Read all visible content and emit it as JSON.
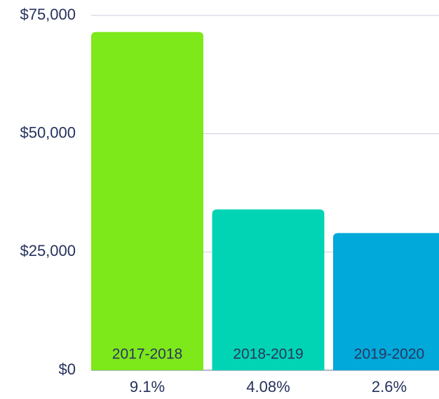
{
  "chart_data": {
    "type": "bar",
    "categories": [
      "2017-2018",
      "2018-2019",
      "2019-2020"
    ],
    "growth_labels": [
      "9.1%",
      "4.08%",
      "2.6%"
    ],
    "values": [
      71500,
      34000,
      29000
    ],
    "colors": [
      "#7de81a",
      "#00d4b4",
      "#00a9d9"
    ],
    "ylim": [
      0,
      75000
    ],
    "yticks": [
      {
        "value": 0,
        "label": "$0"
      },
      {
        "value": 25000,
        "label": "$25,000"
      },
      {
        "value": 50000,
        "label": "$50,000"
      },
      {
        "value": 75000,
        "label": "$75,000"
      }
    ],
    "grid": true
  }
}
